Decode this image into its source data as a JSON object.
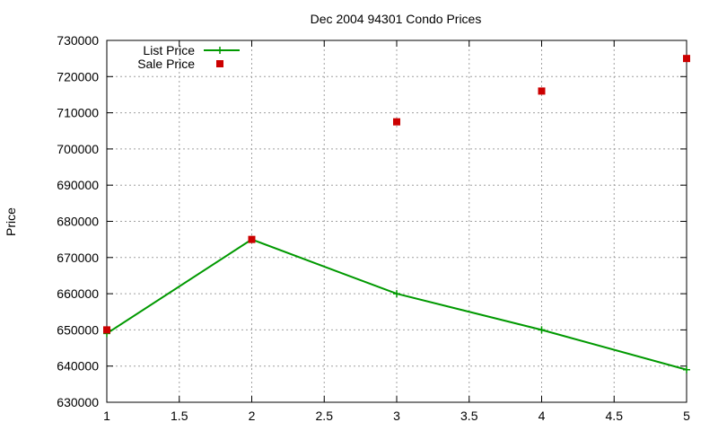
{
  "chart_data": {
    "type": "line",
    "title": "Dec 2004 94301 Condo Prices",
    "xlabel": "",
    "ylabel": "Price",
    "xlim": [
      1,
      5
    ],
    "ylim": [
      630000,
      730000
    ],
    "xticks": [
      "1",
      "1.5",
      "2",
      "2.5",
      "3",
      "3.5",
      "4",
      "4.5",
      "5"
    ],
    "yticks": [
      "630000",
      "640000",
      "650000",
      "660000",
      "670000",
      "680000",
      "690000",
      "700000",
      "710000",
      "720000",
      "730000"
    ],
    "grid": true,
    "legend_position": "top-left",
    "series": [
      {
        "name": "List Price",
        "style": "line-with-plus-markers",
        "color": "#009900",
        "x": [
          1,
          2,
          3,
          4,
          5
        ],
        "y": [
          649000,
          675000,
          660000,
          650000,
          639000
        ]
      },
      {
        "name": "Sale Price",
        "style": "square-markers",
        "color": "#cc0000",
        "x": [
          1,
          2,
          3,
          4,
          5
        ],
        "y": [
          650000,
          675000,
          707500,
          716000,
          725000
        ]
      }
    ]
  }
}
